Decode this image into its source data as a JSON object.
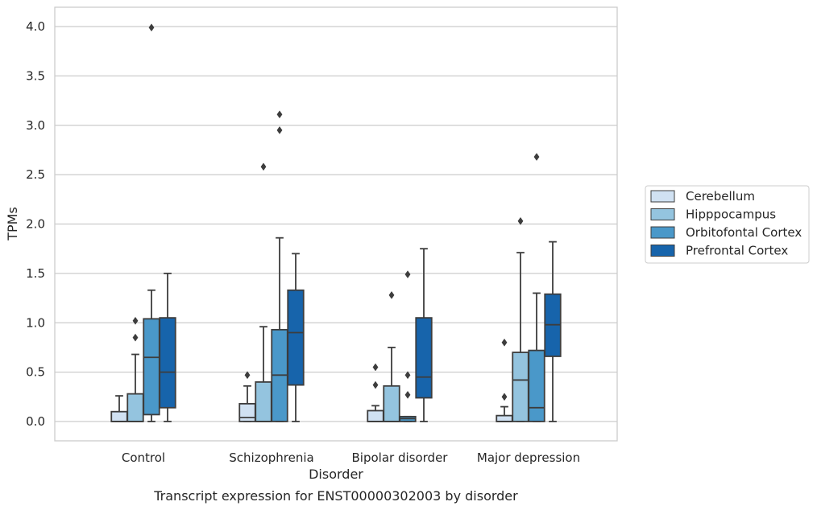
{
  "caption": "Transcript expression for ENST00000302003 by disorder",
  "chart_data": {
    "type": "boxplot",
    "xlabel": "Disorder",
    "ylabel": "TPMs",
    "ylim": [
      -0.19,
      4.2
    ],
    "yticks": [
      "0.0",
      "0.5",
      "1.0",
      "1.5",
      "2.0",
      "2.5",
      "3.0",
      "3.5",
      "4.0"
    ],
    "grid": "horizontal",
    "legend_position": "right",
    "categories": [
      "Control",
      "Schizophrenia",
      "Bipolar disorder",
      "Major depression"
    ],
    "series": [
      {
        "name": "Cerebellum",
        "color": "#d0e1f2",
        "boxes": [
          {
            "whislo": 0.0,
            "q1": 0.0,
            "med": 0.0,
            "q3": 0.1,
            "whishi": 0.26,
            "fliers": []
          },
          {
            "whislo": 0.0,
            "q1": 0.0,
            "med": 0.04,
            "q3": 0.18,
            "whishi": 0.36,
            "fliers": [
              0.47
            ]
          },
          {
            "whislo": 0.0,
            "q1": 0.0,
            "med": 0.0,
            "q3": 0.11,
            "whishi": 0.16,
            "fliers": [
              0.37,
              0.55
            ]
          },
          {
            "whislo": 0.0,
            "q1": 0.0,
            "med": 0.0,
            "q3": 0.06,
            "whishi": 0.15,
            "fliers": [
              0.25,
              0.8
            ]
          }
        ]
      },
      {
        "name": "Hipppocampus",
        "color": "#94c4df",
        "boxes": [
          {
            "whislo": 0.0,
            "q1": 0.0,
            "med": 0.0,
            "q3": 0.28,
            "whishi": 0.68,
            "fliers": [
              0.85,
              1.02
            ]
          },
          {
            "whislo": 0.0,
            "q1": 0.0,
            "med": 0.0,
            "q3": 0.4,
            "whishi": 0.96,
            "fliers": [
              2.58
            ]
          },
          {
            "whislo": 0.0,
            "q1": 0.0,
            "med": 0.0,
            "q3": 0.36,
            "whishi": 0.75,
            "fliers": [
              1.28
            ]
          },
          {
            "whislo": 0.0,
            "q1": 0.0,
            "med": 0.42,
            "q3": 0.7,
            "whishi": 1.71,
            "fliers": [
              2.03
            ]
          }
        ]
      },
      {
        "name": "Orbitofontal Cortex",
        "color": "#4a98c9",
        "boxes": [
          {
            "whislo": 0.0,
            "q1": 0.07,
            "med": 0.65,
            "q3": 1.04,
            "whishi": 1.33,
            "fliers": [
              3.99
            ]
          },
          {
            "whislo": 0.0,
            "q1": 0.0,
            "med": 0.47,
            "q3": 0.93,
            "whishi": 1.86,
            "fliers": [
              2.95,
              3.11
            ]
          },
          {
            "whislo": 0.0,
            "q1": 0.0,
            "med": 0.03,
            "q3": 0.05,
            "whishi": 0.05,
            "fliers": [
              0.27,
              0.47,
              1.49
            ]
          },
          {
            "whislo": 0.0,
            "q1": 0.0,
            "med": 0.14,
            "q3": 0.72,
            "whishi": 1.3,
            "fliers": [
              2.68
            ]
          }
        ]
      },
      {
        "name": "Prefrontal Cortex",
        "color": "#1764ab",
        "boxes": [
          {
            "whislo": 0.0,
            "q1": 0.14,
            "med": 0.5,
            "q3": 1.05,
            "whishi": 1.5,
            "fliers": []
          },
          {
            "whislo": 0.0,
            "q1": 0.37,
            "med": 0.9,
            "q3": 1.33,
            "whishi": 1.7,
            "fliers": []
          },
          {
            "whislo": 0.0,
            "q1": 0.24,
            "med": 0.45,
            "q3": 1.05,
            "whishi": 1.75,
            "fliers": []
          },
          {
            "whislo": 0.0,
            "q1": 0.66,
            "med": 0.98,
            "q3": 1.29,
            "whishi": 1.82,
            "fliers": []
          }
        ]
      }
    ]
  }
}
